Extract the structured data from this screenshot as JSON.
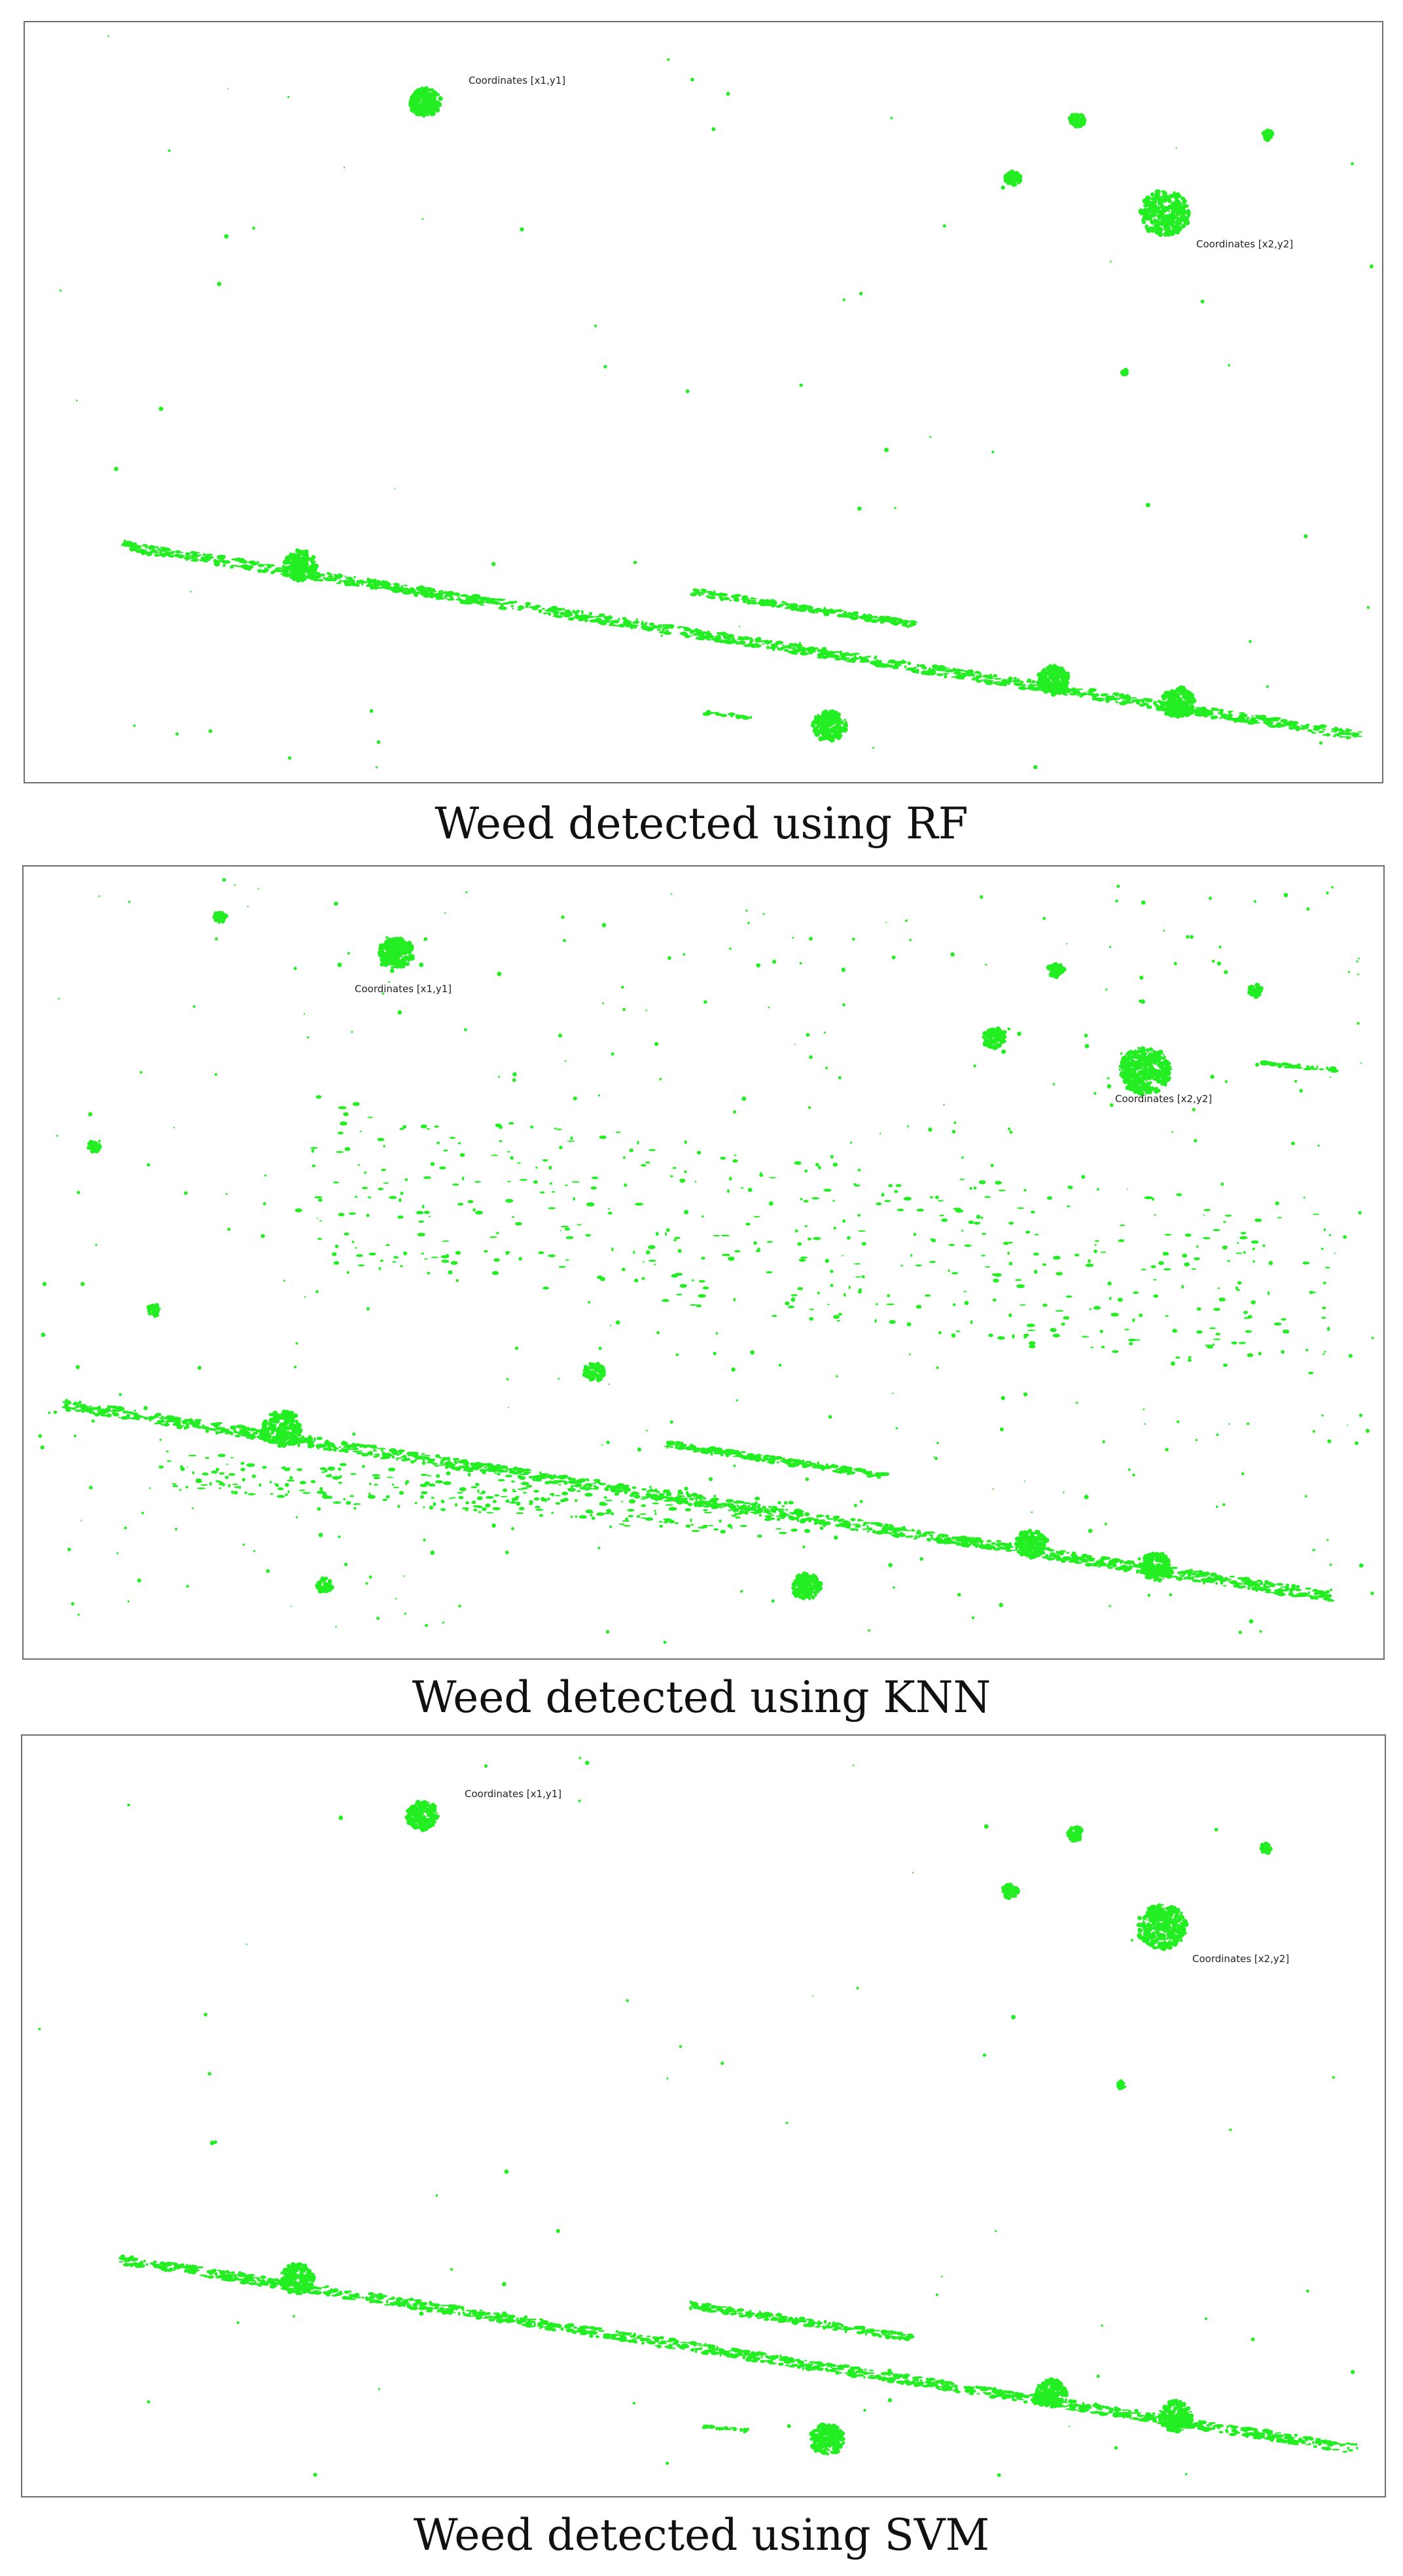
{
  "colors": {
    "detection": "#22ee22",
    "frame": "#6e6e6e",
    "background": "#ffffff"
  },
  "panels": [
    {
      "id": "rf",
      "caption": "Weed detected using RF",
      "label_1": "Coordinates [x1,y1]",
      "label_2": "Coordinates [x2,y2]"
    },
    {
      "id": "knn",
      "caption": "Weed detected using KNN",
      "label_1": "Coordinates [x1,y1]",
      "label_2": "Coordinates [x2,y2]"
    },
    {
      "id": "svm",
      "caption": "Weed detected using SVM",
      "label_1": "Coordinates [x1,y1]",
      "label_2": "Coordinates [x2,y2]"
    }
  ]
}
